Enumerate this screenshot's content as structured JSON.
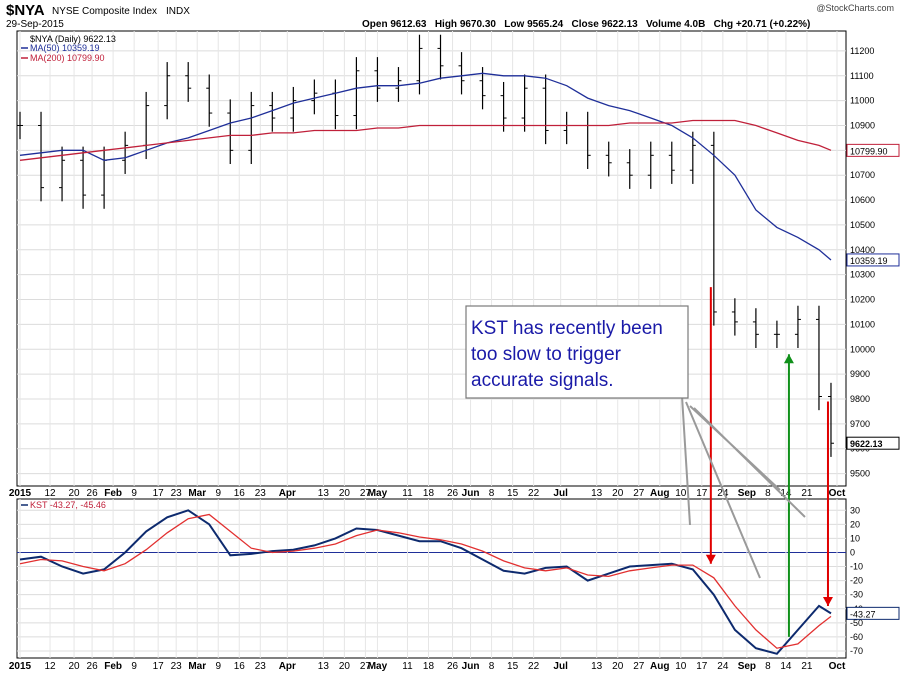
{
  "header": {
    "symbol": "$NYA",
    "name": "NYSE Composite Index",
    "exchange": "INDX",
    "date": "29-Sep-2015",
    "ohlc": "Open 9612.63   High 9670.30   Low 9565.24   Close 9622.13   Volume 4.0B   Chg +20.71 (+0.22%)",
    "watermark": "@StockCharts.com"
  },
  "chart_data": [
    {
      "type": "line",
      "name": "price-panel",
      "legend": [
        "$NYA (Daily) 9622.13",
        "MA(50) 10359.19",
        "MA(200) 10799.90"
      ],
      "legend_placement": "top-left",
      "ylim": [
        9450,
        11280
      ],
      "yticks": [
        9500,
        9600,
        9700,
        9800,
        9900,
        10000,
        10100,
        10200,
        10300,
        10400,
        10500,
        10600,
        10700,
        10800,
        10900,
        11000,
        11100,
        11200
      ],
      "grid": true,
      "price_labels": [
        "10799.90",
        "10359.19",
        "9622.13"
      ],
      "x": [
        "Jan 2",
        "Jan 9",
        "Jan 16",
        "Jan 23",
        "Jan 30",
        "Feb 6",
        "Feb 13",
        "Feb 20",
        "Feb 27",
        "Mar 6",
        "Mar 13",
        "Mar 20",
        "Mar 27",
        "Apr 3",
        "Apr 10",
        "Apr 17",
        "Apr 24",
        "May 1",
        "May 8",
        "May 15",
        "May 22",
        "May 29",
        "Jun 5",
        "Jun 12",
        "Jun 19",
        "Jun 26",
        "Jul 3",
        "Jul 10",
        "Jul 17",
        "Jul 24",
        "Jul 31",
        "Aug 7",
        "Aug 14",
        "Aug 21",
        "Aug 28",
        "Sep 4",
        "Sep 11",
        "Sep 18",
        "Sep 25",
        "Sep 29"
      ],
      "series": [
        {
          "name": "$NYA",
          "color": "#000000",
          "values": [
            10900,
            10650,
            10760,
            10620,
            10760,
            10820,
            10980,
            11100,
            11050,
            10950,
            10800,
            10980,
            10930,
            11000,
            11030,
            10940,
            11120,
            11050,
            11080,
            11210,
            11140,
            11080,
            11020,
            10930,
            11050,
            10880,
            10900,
            10780,
            10750,
            10700,
            10780,
            10720,
            10820,
            10150,
            10110,
            10060,
            10060,
            10120,
            9810,
            9622
          ]
        },
        {
          "name": "MA(50)",
          "color": "#1f2f99",
          "values": [
            10780,
            10790,
            10800,
            10800,
            10760,
            10770,
            10800,
            10830,
            10850,
            10880,
            10910,
            10930,
            10960,
            10990,
            11010,
            11030,
            11050,
            11060,
            11060,
            11070,
            11090,
            11100,
            11110,
            11100,
            11100,
            11090,
            11060,
            11010,
            10980,
            10960,
            10930,
            10900,
            10850,
            10780,
            10700,
            10560,
            10490,
            10450,
            10400,
            10359
          ]
        },
        {
          "name": "MA(200)",
          "color": "#c0203a",
          "values": [
            10760,
            10770,
            10780,
            10790,
            10800,
            10810,
            10820,
            10830,
            10840,
            10850,
            10860,
            10860,
            10870,
            10870,
            10880,
            10880,
            10880,
            10890,
            10890,
            10900,
            10900,
            10900,
            10900,
            10900,
            10900,
            10900,
            10900,
            10900,
            10900,
            10910,
            10910,
            10910,
            10920,
            10920,
            10920,
            10900,
            10870,
            10840,
            10820,
            10800
          ]
        }
      ]
    },
    {
      "type": "line",
      "name": "kst-panel",
      "legend": [
        "KST -43.27, -45.46"
      ],
      "ylim": [
        -75,
        38
      ],
      "yticks": [
        30,
        20,
        10,
        0,
        -10,
        -20,
        -30,
        -40,
        -50,
        -60,
        -70
      ],
      "zero_line": true,
      "value_label": "-43.27",
      "x": [
        "Jan 2",
        "Jan 9",
        "Jan 16",
        "Jan 23",
        "Jan 30",
        "Feb 6",
        "Feb 13",
        "Feb 20",
        "Feb 27",
        "Mar 6",
        "Mar 13",
        "Mar 20",
        "Mar 27",
        "Apr 3",
        "Apr 10",
        "Apr 17",
        "Apr 24",
        "May 1",
        "May 8",
        "May 15",
        "May 22",
        "May 29",
        "Jun 5",
        "Jun 12",
        "Jun 19",
        "Jun 26",
        "Jul 3",
        "Jul 10",
        "Jul 17",
        "Jul 24",
        "Jul 31",
        "Aug 7",
        "Aug 14",
        "Aug 21",
        "Aug 28",
        "Sep 4",
        "Sep 11",
        "Sep 18",
        "Sep 25",
        "Sep 29"
      ],
      "series": [
        {
          "name": "KST",
          "color": "#0d2a6e",
          "values": [
            -5,
            -3,
            -10,
            -15,
            -12,
            0,
            15,
            25,
            30,
            20,
            -2,
            -1,
            1,
            2,
            5,
            10,
            17,
            16,
            12,
            8,
            8,
            3,
            -5,
            -13,
            -15,
            -11,
            -10,
            -20,
            -15,
            -10,
            -9,
            -8,
            -12,
            -30,
            -55,
            -68,
            -72,
            -55,
            -38,
            -43.27
          ]
        },
        {
          "name": "KST signal",
          "color": "#e23030",
          "values": [
            -8,
            -5,
            -6,
            -10,
            -13,
            -8,
            2,
            14,
            24,
            27,
            15,
            3,
            0,
            1,
            3,
            6,
            12,
            16,
            14,
            11,
            9,
            6,
            1,
            -6,
            -11,
            -13,
            -11,
            -16,
            -17,
            -13,
            -11,
            -9,
            -9,
            -18,
            -38,
            -55,
            -68,
            -65,
            -52,
            -45.46
          ]
        }
      ]
    }
  ],
  "x_axis_labels": [
    {
      "text": "2015",
      "bold": true,
      "x": "Jan 2"
    },
    {
      "text": "12",
      "x": "Jan 12"
    },
    {
      "text": "20",
      "x": "Jan 20"
    },
    {
      "text": "26",
      "x": "Jan 26"
    },
    {
      "text": "Feb",
      "bold": true,
      "x": "Feb 2"
    },
    {
      "text": "9",
      "x": "Feb 9"
    },
    {
      "text": "17",
      "x": "Feb 17"
    },
    {
      "text": "23",
      "x": "Feb 23"
    },
    {
      "text": "Mar",
      "bold": true,
      "x": "Mar 2"
    },
    {
      "text": "9",
      "x": "Mar 9"
    },
    {
      "text": "16",
      "x": "Mar 16"
    },
    {
      "text": "23",
      "x": "Mar 23"
    },
    {
      "text": "Apr",
      "bold": true,
      "x": "Apr 1"
    },
    {
      "text": "13",
      "x": "Apr 13"
    },
    {
      "text": "20",
      "x": "Apr 20"
    },
    {
      "text": "27",
      "x": "Apr 27"
    },
    {
      "text": "May",
      "bold": true,
      "x": "May 1"
    },
    {
      "text": "11",
      "x": "May 11"
    },
    {
      "text": "18",
      "x": "May 18"
    },
    {
      "text": "26",
      "x": "May 26"
    },
    {
      "text": "Jun",
      "bold": true,
      "x": "Jun 1"
    },
    {
      "text": "8",
      "x": "Jun 8"
    },
    {
      "text": "15",
      "x": "Jun 15"
    },
    {
      "text": "22",
      "x": "Jun 22"
    },
    {
      "text": "Jul",
      "bold": true,
      "x": "Jul 1"
    },
    {
      "text": "13",
      "x": "Jul 13"
    },
    {
      "text": "20",
      "x": "Jul 20"
    },
    {
      "text": "27",
      "x": "Jul 27"
    },
    {
      "text": "Aug",
      "bold": true,
      "x": "Aug 3"
    },
    {
      "text": "10",
      "x": "Aug 10"
    },
    {
      "text": "17",
      "x": "Aug 17"
    },
    {
      "text": "24",
      "x": "Aug 24"
    },
    {
      "text": "Sep",
      "bold": true,
      "x": "Sep 1"
    },
    {
      "text": "8",
      "x": "Sep 8"
    },
    {
      "text": "14",
      "x": "Sep 14"
    },
    {
      "text": "21",
      "x": "Sep 21"
    },
    {
      "text": "Oct",
      "bold": true,
      "x": "Oct 1"
    }
  ],
  "annotation": {
    "lines": [
      "KST has recently been",
      "too slow to trigger",
      "accurate signals."
    ],
    "text_color": "#1a1aa8"
  },
  "signal_arrows": [
    {
      "color": "#e00000",
      "direction": "down",
      "at": "Aug 20"
    },
    {
      "color": "#10901a",
      "direction": "up",
      "at": "Sep 15"
    },
    {
      "color": "#e00000",
      "direction": "down",
      "at": "Sep 28"
    }
  ]
}
